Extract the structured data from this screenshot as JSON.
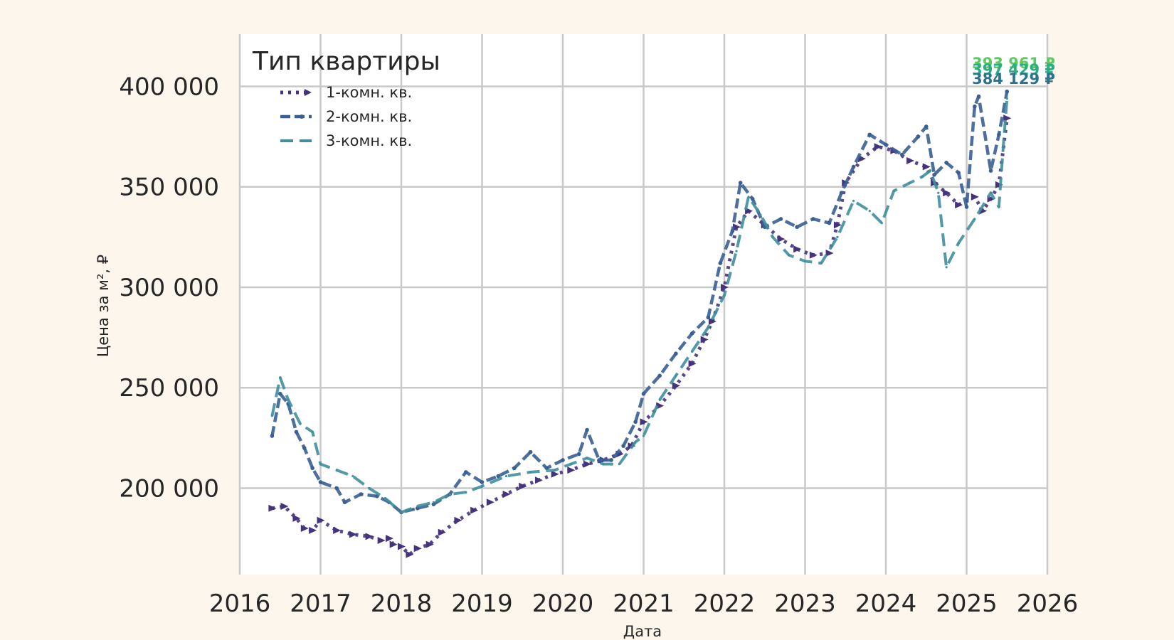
{
  "chart_data": {
    "type": "line",
    "title": "",
    "xlabel": "Дата",
    "ylabel": "Цена за м², ₽",
    "xlim": [
      2016,
      2026
    ],
    "ylim": [
      157000,
      426000
    ],
    "x_ticks": [
      2016,
      2017,
      2018,
      2019,
      2020,
      2021,
      2022,
      2023,
      2024,
      2025,
      2026
    ],
    "x_tick_labels": [
      "2016",
      "2017",
      "2018",
      "2019",
      "2020",
      "2021",
      "2022",
      "2023",
      "2024",
      "2025",
      "2026"
    ],
    "y_ticks": [
      200000,
      250000,
      300000,
      350000,
      400000
    ],
    "y_tick_labels": [
      "200 000",
      "250 000",
      "300 000",
      "350 000",
      "400 000"
    ],
    "grid": true,
    "legend": {
      "title": "Тип квартиры",
      "placement": "top-left"
    },
    "series": [
      {
        "name": "1-комн. кв.",
        "color": "#46337e",
        "style": "dotted-triangle",
        "x": [
          2016.4,
          2016.55,
          2016.7,
          2016.8,
          2016.9,
          2017.0,
          2017.2,
          2017.4,
          2017.6,
          2017.75,
          2017.85,
          2017.9,
          2018.0,
          2018.1,
          2018.2,
          2018.35,
          2018.5,
          2018.7,
          2018.9,
          2019.1,
          2019.3,
          2019.5,
          2019.7,
          2019.9,
          2020.1,
          2020.3,
          2020.5,
          2020.7,
          2020.85,
          2021.0,
          2021.2,
          2021.4,
          2021.6,
          2021.75,
          2021.85,
          2022.0,
          2022.15,
          2022.3,
          2022.5,
          2022.7,
          2022.9,
          2023.1,
          2023.3,
          2023.4,
          2023.5,
          2023.7,
          2023.9,
          2024.1,
          2024.3,
          2024.5,
          2024.6,
          2024.75,
          2024.9,
          2025.1,
          2025.2,
          2025.3,
          2025.4,
          2025.5
        ],
        "y": [
          190000,
          191000,
          185000,
          180000,
          179000,
          184000,
          179000,
          177000,
          176000,
          174000,
          175000,
          172000,
          171000,
          167000,
          170000,
          172000,
          178000,
          184000,
          189000,
          193000,
          197000,
          201000,
          204000,
          207000,
          209000,
          212000,
          214000,
          217000,
          221000,
          233000,
          241000,
          251000,
          262000,
          274000,
          283000,
          300000,
          330000,
          338000,
          331000,
          324000,
          319000,
          316000,
          317000,
          331000,
          352000,
          364000,
          370000,
          368000,
          363000,
          360000,
          352000,
          347000,
          341000,
          345000,
          338000,
          344000,
          351000,
          384129
        ]
      },
      {
        "name": "2-комн. кв.",
        "color": "#3a5f93",
        "style": "dashed-star",
        "x": [
          2016.4,
          2016.5,
          2016.6,
          2016.7,
          2016.8,
          2016.9,
          2017.0,
          2017.2,
          2017.3,
          2017.5,
          2017.7,
          2017.85,
          2018.0,
          2018.2,
          2018.4,
          2018.6,
          2018.8,
          2019.0,
          2019.2,
          2019.4,
          2019.6,
          2019.8,
          2020.0,
          2020.2,
          2020.3,
          2020.45,
          2020.6,
          2020.75,
          2020.9,
          2021.0,
          2021.2,
          2021.4,
          2021.6,
          2021.8,
          2021.95,
          2022.1,
          2022.2,
          2022.35,
          2022.5,
          2022.7,
          2022.9,
          2023.1,
          2023.3,
          2023.45,
          2023.6,
          2023.8,
          2024.0,
          2024.2,
          2024.4,
          2024.5,
          2024.6,
          2024.75,
          2024.9,
          2025.0,
          2025.1,
          2025.15,
          2025.3,
          2025.4,
          2025.5
        ],
        "y": [
          226000,
          247000,
          242000,
          228000,
          220000,
          210000,
          203000,
          200000,
          193000,
          197000,
          196000,
          193000,
          188000,
          190000,
          192000,
          197000,
          208000,
          203000,
          206000,
          210000,
          218000,
          210000,
          214000,
          217000,
          229000,
          214000,
          214000,
          221000,
          233000,
          247000,
          256000,
          267000,
          277000,
          285000,
          312000,
          328000,
          352000,
          344000,
          330000,
          334000,
          330000,
          334000,
          332000,
          347000,
          360000,
          376000,
          371000,
          366000,
          375000,
          380000,
          356000,
          362000,
          357000,
          340000,
          390000,
          395000,
          358000,
          376000,
          397429
        ]
      },
      {
        "name": "3-комн. кв.",
        "color": "#3f8f9d",
        "style": "dashed",
        "x": [
          2016.4,
          2016.5,
          2016.6,
          2016.75,
          2016.9,
          2017.0,
          2017.2,
          2017.4,
          2017.6,
          2017.8,
          2018.0,
          2018.2,
          2018.4,
          2018.6,
          2018.8,
          2019.0,
          2019.3,
          2019.6,
          2019.9,
          2020.1,
          2020.3,
          2020.5,
          2020.7,
          2020.9,
          2021.0,
          2021.2,
          2021.4,
          2021.6,
          2021.8,
          2022.0,
          2022.15,
          2022.3,
          2022.45,
          2022.6,
          2022.8,
          2023.0,
          2023.2,
          2023.4,
          2023.6,
          2023.8,
          2023.95,
          2024.1,
          2024.3,
          2024.45,
          2024.55,
          2024.65,
          2024.75,
          2024.9,
          2025.1,
          2025.3,
          2025.4,
          2025.45,
          2025.5
        ],
        "y": [
          236000,
          255000,
          244000,
          232000,
          228000,
          212000,
          209000,
          206000,
          200000,
          195000,
          188000,
          191000,
          193000,
          197000,
          198000,
          201000,
          206000,
          208000,
          209000,
          212000,
          215000,
          212000,
          212000,
          223000,
          226000,
          244000,
          256000,
          268000,
          280000,
          296000,
          318000,
          345000,
          336000,
          325000,
          316000,
          313000,
          312000,
          325000,
          343000,
          338000,
          332000,
          348000,
          352000,
          355000,
          358000,
          347000,
          310000,
          322000,
          334000,
          347000,
          340000,
          368000,
          393961
        ]
      }
    ],
    "end_labels": [
      {
        "text": "393 961 ₽",
        "series": "3-комн. кв.",
        "color": "#5ec962"
      },
      {
        "text": "397 429 ₽",
        "series": "2-комн. кв.",
        "color": "#28ae80"
      },
      {
        "text": "384 129 ₽",
        "series": "1-комн. кв.",
        "color": "#2c728e"
      }
    ],
    "x_label_text": "Дата",
    "y_label_text": "Цена за м², ₽"
  }
}
